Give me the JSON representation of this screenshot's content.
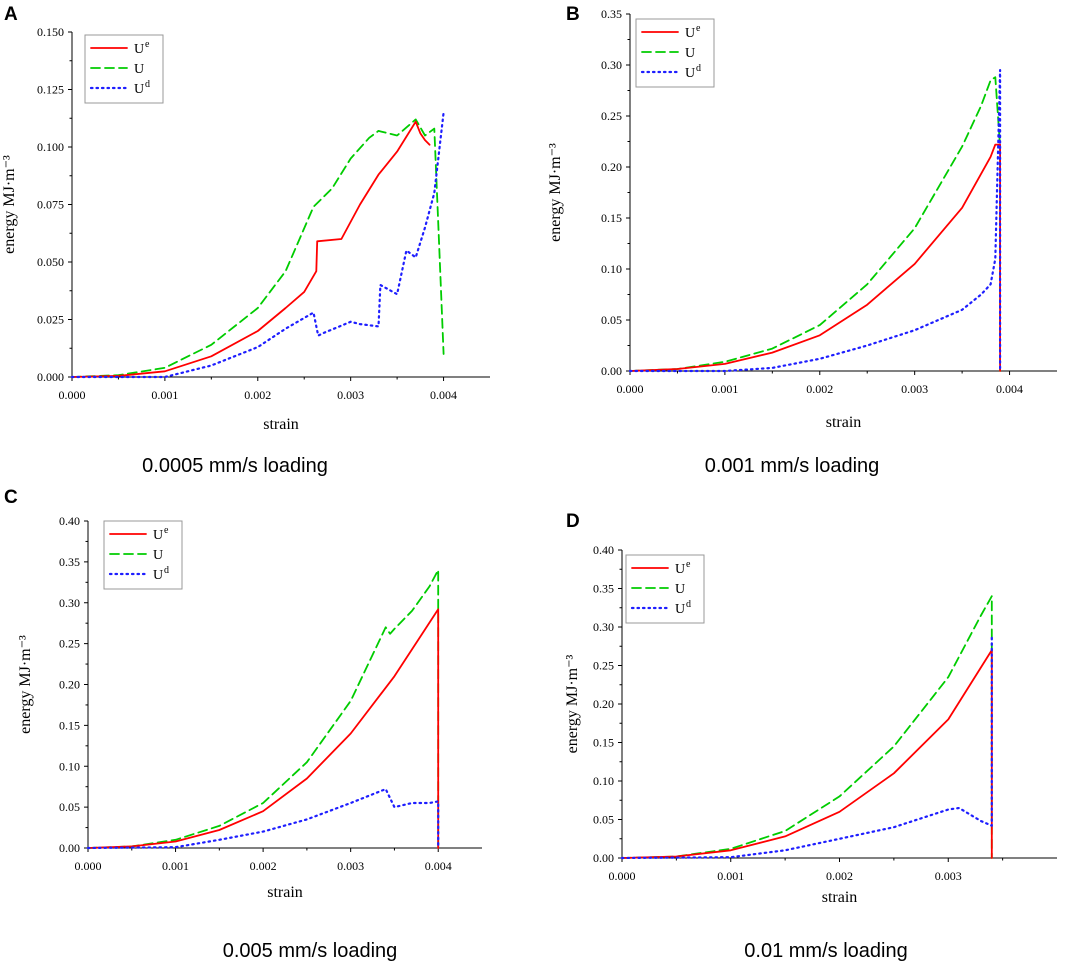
{
  "chart_data": [
    {
      "panel": "A",
      "type": "line",
      "caption": "0.0005 mm/s loading",
      "xlabel": "strain",
      "ylabel": "energy MJ·m⁻³",
      "xlim": [
        0,
        0.0045
      ],
      "ylim": [
        0,
        0.15
      ],
      "xticks": [
        0,
        0.001,
        0.002,
        0.003,
        0.004
      ],
      "xtick_labels": [
        "0.000",
        "0.001",
        "0.002",
        "0.003",
        "0.004"
      ],
      "yticks": [
        0,
        0.025,
        0.05,
        0.075,
        0.1,
        0.125,
        0.15
      ],
      "ytick_labels": [
        "0.000",
        "0.025",
        "0.050",
        "0.075",
        "0.100",
        "0.125",
        "0.150"
      ],
      "legend_position": "top-left",
      "series": [
        {
          "name": "U",
          "sup": "e",
          "color": "#ff0000",
          "style": "solid",
          "x": [
            0,
            0.0005,
            0.001,
            0.0015,
            0.002,
            0.0023,
            0.0025,
            0.00263,
            0.00264,
            0.0029,
            0.0031,
            0.0033,
            0.0035,
            0.0037,
            0.00375,
            0.0038,
            0.00385
          ],
          "y": [
            0,
            0.0005,
            0.0025,
            0.009,
            0.02,
            0.03,
            0.037,
            0.046,
            0.059,
            0.06,
            0.075,
            0.088,
            0.098,
            0.111,
            0.106,
            0.103,
            0.101
          ]
        },
        {
          "name": "U",
          "sup": "",
          "color": "#00cc00",
          "style": "dashed",
          "x": [
            0,
            0.0005,
            0.001,
            0.0015,
            0.002,
            0.0023,
            0.0026,
            0.0028,
            0.003,
            0.0032,
            0.0033,
            0.0035,
            0.0037,
            0.0038,
            0.0039,
            0.00395,
            0.004
          ],
          "y": [
            0,
            0.0008,
            0.004,
            0.014,
            0.03,
            0.046,
            0.074,
            0.082,
            0.095,
            0.104,
            0.107,
            0.105,
            0.112,
            0.105,
            0.108,
            0.06,
            0.01
          ]
        },
        {
          "name": "U",
          "sup": "d",
          "color": "#1e1eff",
          "style": "dotted",
          "x": [
            0,
            0.001,
            0.0015,
            0.002,
            0.0023,
            0.0026,
            0.00265,
            0.0027,
            0.003,
            0.0031,
            0.0033,
            0.00332,
            0.0035,
            0.0036,
            0.0037,
            0.0038,
            0.0039,
            0.004
          ],
          "y": [
            0,
            0,
            0.005,
            0.013,
            0.021,
            0.028,
            0.018,
            0.019,
            0.024,
            0.023,
            0.022,
            0.04,
            0.036,
            0.055,
            0.052,
            0.065,
            0.08,
            0.115
          ]
        }
      ]
    },
    {
      "panel": "B",
      "type": "line",
      "caption": "0.001 mm/s loading",
      "xlabel": "strain",
      "ylabel": "energy MJ·m⁻³",
      "xlim": [
        0,
        0.0045
      ],
      "ylim": [
        0,
        0.35
      ],
      "xticks": [
        0,
        0.001,
        0.002,
        0.003,
        0.004
      ],
      "xtick_labels": [
        "0.000",
        "0.001",
        "0.002",
        "0.003",
        "0.004"
      ],
      "yticks": [
        0,
        0.05,
        0.1,
        0.15,
        0.2,
        0.25,
        0.3,
        0.35
      ],
      "ytick_labels": [
        "0.00",
        "0.05",
        "0.10",
        "0.15",
        "0.20",
        "0.25",
        "0.30",
        "0.35"
      ],
      "legend_position": "top-right",
      "series": [
        {
          "name": "U",
          "sup": "e",
          "color": "#ff0000",
          "style": "solid",
          "x": [
            0,
            0.0005,
            0.001,
            0.0015,
            0.002,
            0.0025,
            0.003,
            0.0035,
            0.0038,
            0.00385,
            0.0039,
            0.0039
          ],
          "y": [
            0,
            0.002,
            0.007,
            0.018,
            0.035,
            0.065,
            0.105,
            0.16,
            0.21,
            0.222,
            0.222,
            0
          ]
        },
        {
          "name": "U",
          "sup": "",
          "color": "#00cc00",
          "style": "dashed",
          "x": [
            0,
            0.0005,
            0.001,
            0.0015,
            0.002,
            0.0025,
            0.003,
            0.0035,
            0.0037,
            0.0038,
            0.00385,
            0.0039,
            0.0039
          ],
          "y": [
            0,
            0.002,
            0.009,
            0.022,
            0.045,
            0.085,
            0.14,
            0.22,
            0.26,
            0.285,
            0.288,
            0.22,
            0
          ]
        },
        {
          "name": "U",
          "sup": "d",
          "color": "#1e1eff",
          "style": "dotted",
          "x": [
            0,
            0.001,
            0.0015,
            0.002,
            0.0025,
            0.003,
            0.0035,
            0.0037,
            0.0038,
            0.00385,
            0.0039,
            0.0039
          ],
          "y": [
            0,
            0,
            0.003,
            0.012,
            0.025,
            0.04,
            0.06,
            0.075,
            0.085,
            0.11,
            0.295,
            0
          ]
        }
      ]
    },
    {
      "panel": "C",
      "type": "line",
      "caption": "0.005 mm/s loading",
      "xlabel": "strain",
      "ylabel": "energy MJ·m⁻³",
      "xlim": [
        0,
        0.0045
      ],
      "ylim": [
        0,
        0.4
      ],
      "xticks": [
        0,
        0.001,
        0.002,
        0.003,
        0.004
      ],
      "xtick_labels": [
        "0.000",
        "0.001",
        "0.002",
        "0.003",
        "0.004"
      ],
      "yticks": [
        0,
        0.05,
        0.1,
        0.15,
        0.2,
        0.25,
        0.3,
        0.35,
        0.4
      ],
      "ytick_labels": [
        "0.00",
        "0.05",
        "0.10",
        "0.15",
        "0.20",
        "0.25",
        "0.30",
        "0.35",
        "0.40"
      ],
      "legend_position": "top-left",
      "series": [
        {
          "name": "U",
          "sup": "e",
          "color": "#ff0000",
          "style": "solid",
          "x": [
            0,
            0.0005,
            0.001,
            0.0015,
            0.002,
            0.0025,
            0.003,
            0.0035,
            0.004,
            0.004
          ],
          "y": [
            0,
            0.002,
            0.008,
            0.022,
            0.045,
            0.085,
            0.14,
            0.21,
            0.292,
            0
          ]
        },
        {
          "name": "U",
          "sup": "",
          "color": "#00cc00",
          "style": "dashed",
          "x": [
            0,
            0.0005,
            0.001,
            0.0015,
            0.002,
            0.0025,
            0.003,
            0.0034,
            0.00345,
            0.0035,
            0.0037,
            0.0039,
            0.004,
            0.004
          ],
          "y": [
            0,
            0.002,
            0.01,
            0.027,
            0.055,
            0.105,
            0.18,
            0.27,
            0.262,
            0.268,
            0.29,
            0.32,
            0.34,
            0
          ]
        },
        {
          "name": "U",
          "sup": "d",
          "color": "#1e1eff",
          "style": "dotted",
          "x": [
            0,
            0.001,
            0.0015,
            0.002,
            0.0025,
            0.003,
            0.0034,
            0.0035,
            0.0037,
            0.0039,
            0.004,
            0.004
          ],
          "y": [
            0,
            0.001,
            0.01,
            0.02,
            0.035,
            0.055,
            0.072,
            0.05,
            0.055,
            0.055,
            0.057,
            0
          ]
        }
      ]
    },
    {
      "panel": "D",
      "type": "line",
      "caption": "0.01 mm/s loading",
      "xlabel": "strain",
      "ylabel": "energy MJ·m⁻³",
      "xlim": [
        0,
        0.004
      ],
      "ylim": [
        0,
        0.4
      ],
      "xticks": [
        0,
        0.001,
        0.002,
        0.003
      ],
      "xtick_labels": [
        "0.000",
        "0.001",
        "0.002",
        "0.003"
      ],
      "yticks": [
        0,
        0.05,
        0.1,
        0.15,
        0.2,
        0.25,
        0.3,
        0.35,
        0.4
      ],
      "ytick_labels": [
        "0.00",
        "0.05",
        "0.10",
        "0.15",
        "0.20",
        "0.25",
        "0.30",
        "0.35",
        "0.40"
      ],
      "legend_position": "top-left",
      "series": [
        {
          "name": "U",
          "sup": "e",
          "color": "#ff0000",
          "style": "solid",
          "x": [
            0,
            0.0005,
            0.001,
            0.0015,
            0.002,
            0.0025,
            0.003,
            0.0034,
            0.0034
          ],
          "y": [
            0,
            0.002,
            0.01,
            0.028,
            0.06,
            0.11,
            0.18,
            0.27,
            0
          ]
        },
        {
          "name": "U",
          "sup": "",
          "color": "#00cc00",
          "style": "dashed",
          "x": [
            0,
            0.0005,
            0.001,
            0.0015,
            0.002,
            0.0025,
            0.003,
            0.0033,
            0.0034,
            0.0034
          ],
          "y": [
            0,
            0.002,
            0.012,
            0.035,
            0.08,
            0.145,
            0.235,
            0.315,
            0.34,
            0
          ]
        },
        {
          "name": "U",
          "sup": "d",
          "color": "#1e1eff",
          "style": "dotted",
          "x": [
            0,
            0.001,
            0.0015,
            0.002,
            0.0025,
            0.003,
            0.0031,
            0.0033,
            0.0034,
            0.0034
          ],
          "y": [
            0,
            0.001,
            0.01,
            0.025,
            0.04,
            0.063,
            0.065,
            0.048,
            0.042,
            0.29
          ]
        }
      ]
    }
  ]
}
